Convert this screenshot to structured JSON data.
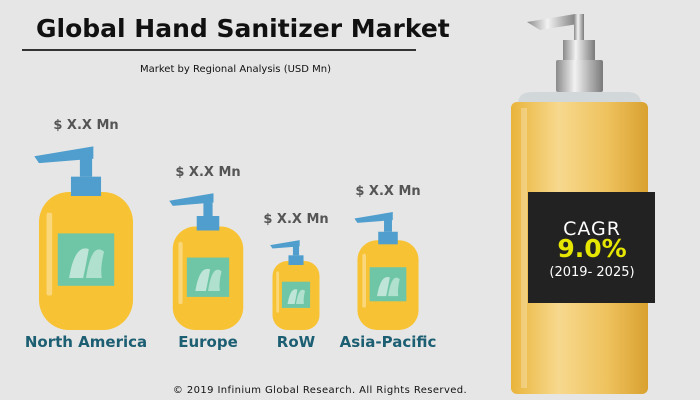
{
  "title": "Global Hand Sanitizer Market",
  "subtitle": "Market by Regional Analysis (USD Mn)",
  "chart_data": {
    "type": "bar",
    "categories": [
      "North America",
      "Europe",
      "RoW",
      "Asia-Pacific"
    ],
    "value_labels": [
      "$ X.X Mn",
      "$ X.X Mn",
      "$ X.X Mn",
      "$ X.X Mn"
    ],
    "relative_sizes": [
      1.0,
      0.75,
      0.5,
      0.65
    ]
  },
  "cagr": {
    "title": "CAGR",
    "value": "9.0%",
    "period": "(2019- 2025)"
  },
  "footer": "© 2019 Infinium Global Research. All Rights Reserved.",
  "colors": {
    "bottle_fill": "#f7c234",
    "pump": "#4f9ecd",
    "label_box": "#6fc6a6",
    "region_text": "#1c5e72",
    "cagr_value": "#e6e600"
  }
}
